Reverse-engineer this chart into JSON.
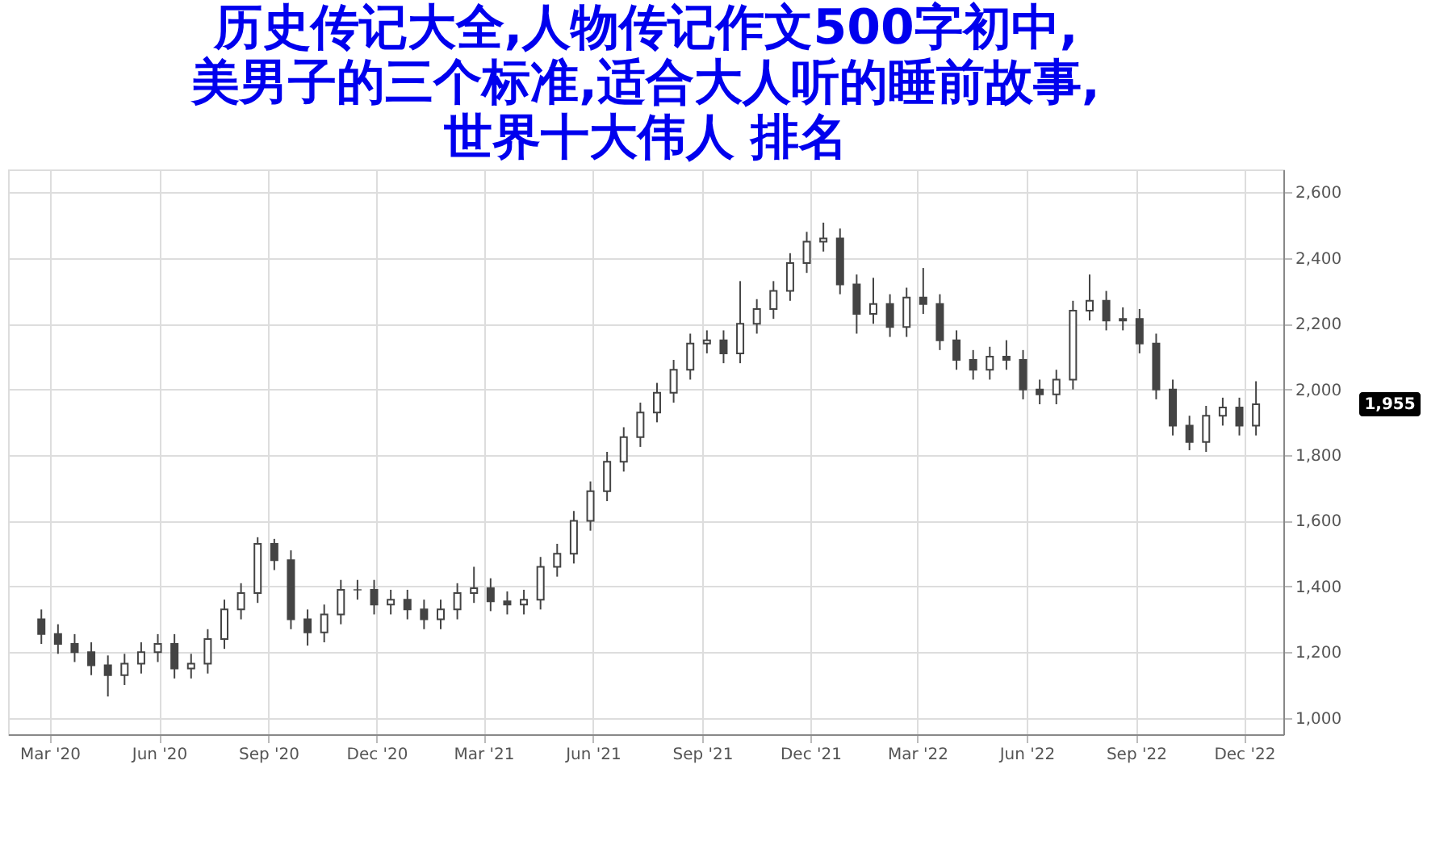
{
  "chart_data": {
    "type": "candlestick",
    "title": "历史传记大全,人物传记作文500字初中,美男子的三个标准,适合大人听的睡前故事,世界十大伟人 排名",
    "x": [
      "2020-02-23",
      "2020-03-08",
      "2020-03-22",
      "2020-04-05",
      "2020-04-19",
      "2020-05-03",
      "2020-05-17",
      "2020-05-31",
      "2020-06-14",
      "2020-06-28",
      "2020-07-12",
      "2020-07-26",
      "2020-08-09",
      "2020-08-23",
      "2020-09-06",
      "2020-09-20",
      "2020-10-04",
      "2020-10-18",
      "2020-11-01",
      "2020-11-15",
      "2020-11-29",
      "2020-12-13",
      "2020-12-27",
      "2021-01-10",
      "2021-01-24",
      "2021-02-07",
      "2021-02-21",
      "2021-03-07",
      "2021-03-21",
      "2021-04-04",
      "2021-04-18",
      "2021-05-02",
      "2021-05-16",
      "2021-05-30",
      "2021-06-13",
      "2021-06-27",
      "2021-07-11",
      "2021-07-25",
      "2021-08-08",
      "2021-08-22",
      "2021-09-05",
      "2021-09-19",
      "2021-10-03",
      "2021-10-17",
      "2021-10-31",
      "2021-11-14",
      "2021-11-28",
      "2021-12-12",
      "2021-12-26",
      "2022-01-09",
      "2022-01-23",
      "2022-02-06",
      "2022-02-20",
      "2022-03-06",
      "2022-03-20",
      "2022-04-03",
      "2022-04-17",
      "2022-05-01",
      "2022-05-15",
      "2022-05-29",
      "2022-06-12",
      "2022-06-26",
      "2022-07-10",
      "2022-07-24",
      "2022-08-07",
      "2022-08-21",
      "2022-09-04",
      "2022-09-18",
      "2022-10-02",
      "2022-10-16",
      "2022-10-30",
      "2022-11-13",
      "2022-11-27",
      "2022-12-11"
    ],
    "ohlc": [
      [
        1300,
        1330,
        1225,
        1255
      ],
      [
        1255,
        1285,
        1195,
        1225
      ],
      [
        1225,
        1255,
        1170,
        1200
      ],
      [
        1200,
        1230,
        1130,
        1160
      ],
      [
        1160,
        1190,
        1065,
        1130
      ],
      [
        1130,
        1195,
        1100,
        1165
      ],
      [
        1165,
        1230,
        1135,
        1200
      ],
      [
        1200,
        1255,
        1170,
        1225
      ],
      [
        1225,
        1255,
        1120,
        1150
      ],
      [
        1150,
        1195,
        1120,
        1165
      ],
      [
        1165,
        1270,
        1135,
        1240
      ],
      [
        1240,
        1360,
        1210,
        1330
      ],
      [
        1330,
        1410,
        1300,
        1380
      ],
      [
        1380,
        1550,
        1350,
        1530
      ],
      [
        1530,
        1545,
        1450,
        1480
      ],
      [
        1480,
        1510,
        1270,
        1300
      ],
      [
        1300,
        1330,
        1220,
        1260
      ],
      [
        1260,
        1345,
        1230,
        1315
      ],
      [
        1315,
        1420,
        1285,
        1390
      ],
      [
        1390,
        1420,
        1360,
        1390
      ],
      [
        1390,
        1420,
        1315,
        1345
      ],
      [
        1345,
        1390,
        1315,
        1360
      ],
      [
        1360,
        1390,
        1300,
        1330
      ],
      [
        1330,
        1360,
        1270,
        1300
      ],
      [
        1300,
        1360,
        1270,
        1330
      ],
      [
        1330,
        1410,
        1300,
        1380
      ],
      [
        1380,
        1460,
        1350,
        1395
      ],
      [
        1395,
        1425,
        1325,
        1355
      ],
      [
        1355,
        1385,
        1315,
        1345
      ],
      [
        1345,
        1390,
        1315,
        1360
      ],
      [
        1360,
        1490,
        1330,
        1460
      ],
      [
        1460,
        1530,
        1430,
        1500
      ],
      [
        1500,
        1630,
        1470,
        1600
      ],
      [
        1600,
        1720,
        1570,
        1690
      ],
      [
        1690,
        1810,
        1660,
        1780
      ],
      [
        1780,
        1885,
        1750,
        1855
      ],
      [
        1855,
        1960,
        1825,
        1930
      ],
      [
        1930,
        2020,
        1900,
        1990
      ],
      [
        1990,
        2090,
        1960,
        2060
      ],
      [
        2060,
        2170,
        2030,
        2140
      ],
      [
        2140,
        2180,
        2110,
        2150
      ],
      [
        2150,
        2180,
        2080,
        2110
      ],
      [
        2110,
        2330,
        2080,
        2200
      ],
      [
        2200,
        2275,
        2170,
        2245
      ],
      [
        2245,
        2330,
        2215,
        2300
      ],
      [
        2300,
        2415,
        2270,
        2385
      ],
      [
        2385,
        2480,
        2355,
        2450
      ],
      [
        2450,
        2508,
        2420,
        2460
      ],
      [
        2460,
        2490,
        2290,
        2320
      ],
      [
        2320,
        2350,
        2170,
        2230
      ],
      [
        2230,
        2340,
        2200,
        2260
      ],
      [
        2260,
        2290,
        2160,
        2190
      ],
      [
        2190,
        2310,
        2160,
        2280
      ],
      [
        2280,
        2370,
        2230,
        2260
      ],
      [
        2260,
        2290,
        2120,
        2150
      ],
      [
        2150,
        2180,
        2060,
        2090
      ],
      [
        2090,
        2120,
        2030,
        2060
      ],
      [
        2060,
        2130,
        2030,
        2100
      ],
      [
        2100,
        2150,
        2060,
        2090
      ],
      [
        2090,
        2120,
        1970,
        2000
      ],
      [
        2000,
        2030,
        1955,
        1985
      ],
      [
        1985,
        2060,
        1955,
        2030
      ],
      [
        2030,
        2270,
        2000,
        2240
      ],
      [
        2240,
        2350,
        2210,
        2270
      ],
      [
        2270,
        2300,
        2180,
        2210
      ],
      [
        2210,
        2250,
        2180,
        2215
      ],
      [
        2215,
        2245,
        2110,
        2140
      ],
      [
        2140,
        2170,
        1970,
        2000
      ],
      [
        2000,
        2030,
        1860,
        1890
      ],
      [
        1890,
        1920,
        1815,
        1840
      ],
      [
        1840,
        1950,
        1810,
        1920
      ],
      [
        1920,
        1975,
        1890,
        1945
      ],
      [
        1945,
        1975,
        1860,
        1890
      ],
      [
        1890,
        2025,
        1860,
        1955
      ]
    ],
    "color": "#444444",
    "xlim": [
      "2020-01-26",
      "2023-01-03"
    ],
    "xticks": [
      {
        "value": "2020-03-01",
        "label": "Mar '20"
      },
      {
        "value": "2020-06-01",
        "label": "Jun '20"
      },
      {
        "value": "2020-09-01",
        "label": "Sep '20"
      },
      {
        "value": "2020-12-01",
        "label": "Dec '20"
      },
      {
        "value": "2021-03-01",
        "label": "Mar '21"
      },
      {
        "value": "2021-06-01",
        "label": "Jun '21"
      },
      {
        "value": "2021-09-01",
        "label": "Sep '21"
      },
      {
        "value": "2021-12-01",
        "label": "Dec '21"
      },
      {
        "value": "2022-03-01",
        "label": "Mar '22"
      },
      {
        "value": "2022-06-01",
        "label": "Jun '22"
      },
      {
        "value": "2022-09-01",
        "label": "Sep '22"
      },
      {
        "value": "2022-12-01",
        "label": "Dec '22"
      }
    ],
    "ylim": [
      950,
      2670
    ],
    "yticks": [
      {
        "value": 1000,
        "label": "1,000"
      },
      {
        "value": 1200,
        "label": "1,200"
      },
      {
        "value": 1400,
        "label": "1,400"
      },
      {
        "value": 1600,
        "label": "1,600"
      },
      {
        "value": 1800,
        "label": "1,800"
      },
      {
        "value": 2000,
        "label": "2,000"
      },
      {
        "value": 2200,
        "label": "2,200"
      },
      {
        "value": 2400,
        "label": "2,400"
      },
      {
        "value": 2600,
        "label": "2,600"
      }
    ],
    "grid": true,
    "annotations": [
      "1,955"
    ]
  }
}
